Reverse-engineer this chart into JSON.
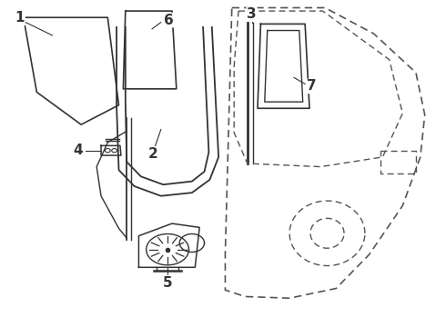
{
  "bg_color": "#ffffff",
  "line_color": "#333333",
  "dashed_color": "#555555",
  "label_fontsize": 11
}
